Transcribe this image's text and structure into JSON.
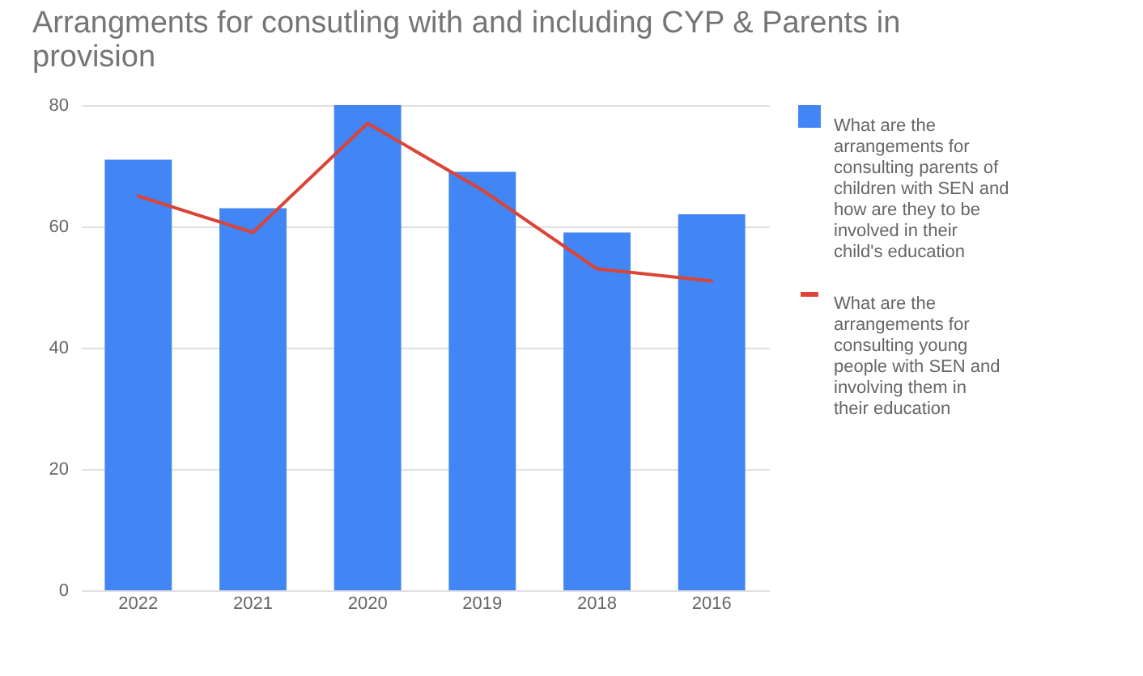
{
  "chart_data": {
    "type": "bar",
    "title": "Arrangments for consutling with and including CYP & Parents in provision",
    "categories": [
      "2022",
      "2021",
      "2020",
      "2019",
      "2018",
      "2016"
    ],
    "series": [
      {
        "name": "What are the arrangements for consulting parents of children with SEN and how are they to be involved in their child's education",
        "color": "#4285f4",
        "values": [
          71,
          63,
          80,
          69,
          59,
          62
        ]
      },
      {
        "name": "What are the arrangements for consulting young people with SEN and involving them in their education",
        "type": "line",
        "color": "#db4437",
        "values": [
          65,
          59,
          77,
          66,
          53,
          51
        ]
      }
    ],
    "ylim": [
      0,
      80
    ],
    "yticks": [
      0,
      20,
      40,
      60,
      80
    ],
    "grid": "y",
    "legend": "right"
  }
}
